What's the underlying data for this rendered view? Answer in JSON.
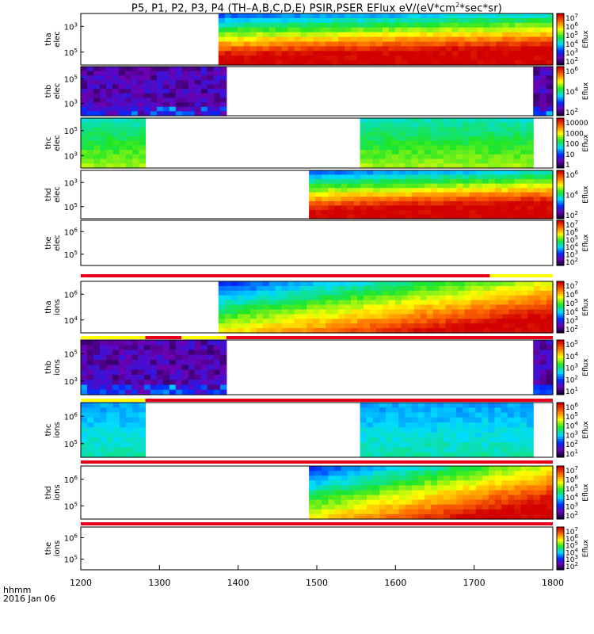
{
  "title": {
    "main": "P5, P1, P2, P3, P4 (TH–A,B,C,D,E) PSIR,PSER EFlux eV/(eV*cm",
    "exp": "2",
    "tail": "*sec*sr)"
  },
  "time_label": "hhmm",
  "date_label": "2016 Jan 06",
  "chart_data": {
    "type": "heatmap",
    "x_range": [
      1200,
      1800
    ],
    "x_ticks": [
      "1200",
      "1300",
      "1400",
      "1500",
      "1600",
      "1700",
      "1800"
    ],
    "colorbar_label": "Eflux",
    "panels": [
      {
        "id": "tha-elec",
        "label1": "tha",
        "label2": "elec",
        "y_ticks": [
          {
            "base": "10",
            "exp": "3",
            "frac": 0.25
          },
          {
            "base": "10",
            "exp": "5",
            "frac": 0.75
          }
        ],
        "cb_ticks": [
          {
            "base": "10",
            "exp": "7"
          },
          {
            "base": "10",
            "exp": "6"
          },
          {
            "base": "10",
            "exp": "5"
          },
          {
            "base": "10",
            "exp": "4"
          },
          {
            "base": "10",
            "exp": "3"
          },
          {
            "base": "10",
            "exp": "2"
          }
        ],
        "data_start": 1375,
        "data_end": 1800,
        "profile": "warm"
      },
      {
        "id": "thb-elec",
        "label1": "thb",
        "label2": "elec",
        "y_ticks": [
          {
            "base": "10",
            "exp": "5",
            "frac": 0.25
          },
          {
            "base": "10",
            "exp": "3",
            "frac": 0.75
          }
        ],
        "cb_ticks": [
          {
            "base": "10",
            "exp": "6"
          },
          {
            "base": "10",
            "exp": "4"
          },
          {
            "base": "10",
            "exp": "2"
          }
        ],
        "data_start": 1200,
        "data_end": 1385,
        "data2_start": 1775,
        "data2_end": 1800,
        "profile": "dark"
      },
      {
        "id": "thc-elec",
        "label1": "thc",
        "label2": "elec",
        "y_ticks": [
          {
            "base": "10",
            "exp": "5",
            "frac": 0.25
          },
          {
            "base": "10",
            "exp": "3",
            "frac": 0.75
          }
        ],
        "cb_ticks": [
          {
            "text": "10000"
          },
          {
            "text": "1000"
          },
          {
            "text": "100"
          },
          {
            "text": "10"
          },
          {
            "text": "1"
          }
        ],
        "data_start": 1200,
        "data_end": 1282,
        "data2_start": 1555,
        "data2_end": 1775,
        "profile": "green"
      },
      {
        "id": "thd-elec",
        "label1": "thd",
        "label2": "elec",
        "y_ticks": [
          {
            "base": "10",
            "exp": "3",
            "frac": 0.25
          },
          {
            "base": "10",
            "exp": "5",
            "frac": 0.75
          }
        ],
        "cb_ticks": [
          {
            "base": "10",
            "exp": "6"
          },
          {
            "base": "10",
            "exp": "4"
          },
          {
            "base": "10",
            "exp": "2"
          }
        ],
        "data_start": 1490,
        "data_end": 1800,
        "profile": "warm"
      },
      {
        "id": "the-elec",
        "label1": "the",
        "label2": "elec",
        "y_ticks": [
          {
            "base": "10",
            "exp": "6",
            "frac": 0.25
          },
          {
            "base": "10",
            "exp": "5",
            "frac": 0.75
          }
        ],
        "cb_ticks": [
          {
            "base": "10",
            "exp": "7"
          },
          {
            "base": "10",
            "exp": "6"
          },
          {
            "base": "10",
            "exp": "5"
          },
          {
            "base": "10",
            "exp": "4"
          },
          {
            "base": "10",
            "exp": "3"
          },
          {
            "base": "10",
            "exp": "2"
          }
        ],
        "profile": "empty"
      },
      {
        "id": "tha-ions",
        "label1": "tha",
        "label2": "ions",
        "y_ticks": [
          {
            "base": "10",
            "exp": "6",
            "frac": 0.25
          },
          {
            "base": "10",
            "exp": "4",
            "frac": 0.75
          }
        ],
        "cb_ticks": [
          {
            "base": "10",
            "exp": "7"
          },
          {
            "base": "10",
            "exp": "6"
          },
          {
            "base": "10",
            "exp": "5"
          },
          {
            "base": "10",
            "exp": "4"
          },
          {
            "base": "10",
            "exp": "3"
          },
          {
            "base": "10",
            "exp": "2"
          }
        ],
        "data_start": 1375,
        "data_end": 1800,
        "profile": "warm-ions"
      },
      {
        "id": "thb-ions",
        "label1": "thb",
        "label2": "ions",
        "y_ticks": [
          {
            "base": "10",
            "exp": "5",
            "frac": 0.25
          },
          {
            "base": "10",
            "exp": "3",
            "frac": 0.75
          }
        ],
        "cb_ticks": [
          {
            "base": "10",
            "exp": "5"
          },
          {
            "base": "10",
            "exp": "4"
          },
          {
            "base": "10",
            "exp": "3"
          },
          {
            "base": "10",
            "exp": "2"
          },
          {
            "base": "10",
            "exp": "1"
          }
        ],
        "data_start": 1200,
        "data_end": 1385,
        "data2_start": 1775,
        "data2_end": 1800,
        "profile": "dark"
      },
      {
        "id": "thc-ions",
        "label1": "thc",
        "label2": "ions",
        "y_ticks": [
          {
            "base": "10",
            "exp": "6",
            "frac": 0.25
          },
          {
            "base": "10",
            "exp": "5",
            "frac": 0.75
          }
        ],
        "cb_ticks": [
          {
            "base": "10",
            "exp": "6"
          },
          {
            "base": "10",
            "exp": "5"
          },
          {
            "base": "10",
            "exp": "4"
          },
          {
            "base": "10",
            "exp": "3"
          },
          {
            "base": "10",
            "exp": "2"
          },
          {
            "base": "10",
            "exp": "1"
          }
        ],
        "data_start": 1200,
        "data_end": 1282,
        "data2_start": 1555,
        "data2_end": 1775,
        "profile": "cyan"
      },
      {
        "id": "thd-ions",
        "label1": "thd",
        "label2": "ions",
        "y_ticks": [
          {
            "base": "10",
            "exp": "6",
            "frac": 0.25
          },
          {
            "base": "10",
            "exp": "5",
            "frac": 0.75
          }
        ],
        "cb_ticks": [
          {
            "base": "10",
            "exp": "7"
          },
          {
            "base": "10",
            "exp": "6"
          },
          {
            "base": "10",
            "exp": "5"
          },
          {
            "base": "10",
            "exp": "4"
          },
          {
            "base": "10",
            "exp": "3"
          },
          {
            "base": "10",
            "exp": "2"
          }
        ],
        "data_start": 1490,
        "data_end": 1800,
        "profile": "warm-ions"
      },
      {
        "id": "the-ions",
        "label1": "the",
        "label2": "ions",
        "y_ticks": [
          {
            "base": "10",
            "exp": "6",
            "frac": 0.25
          },
          {
            "base": "10",
            "exp": "5",
            "frac": 0.75
          }
        ],
        "cb_ticks": [
          {
            "base": "10",
            "exp": "7"
          },
          {
            "base": "10",
            "exp": "6"
          },
          {
            "base": "10",
            "exp": "5"
          },
          {
            "base": "10",
            "exp": "4"
          },
          {
            "base": "10",
            "exp": "3"
          },
          {
            "base": "10",
            "exp": "2"
          }
        ],
        "profile": "empty"
      }
    ]
  }
}
